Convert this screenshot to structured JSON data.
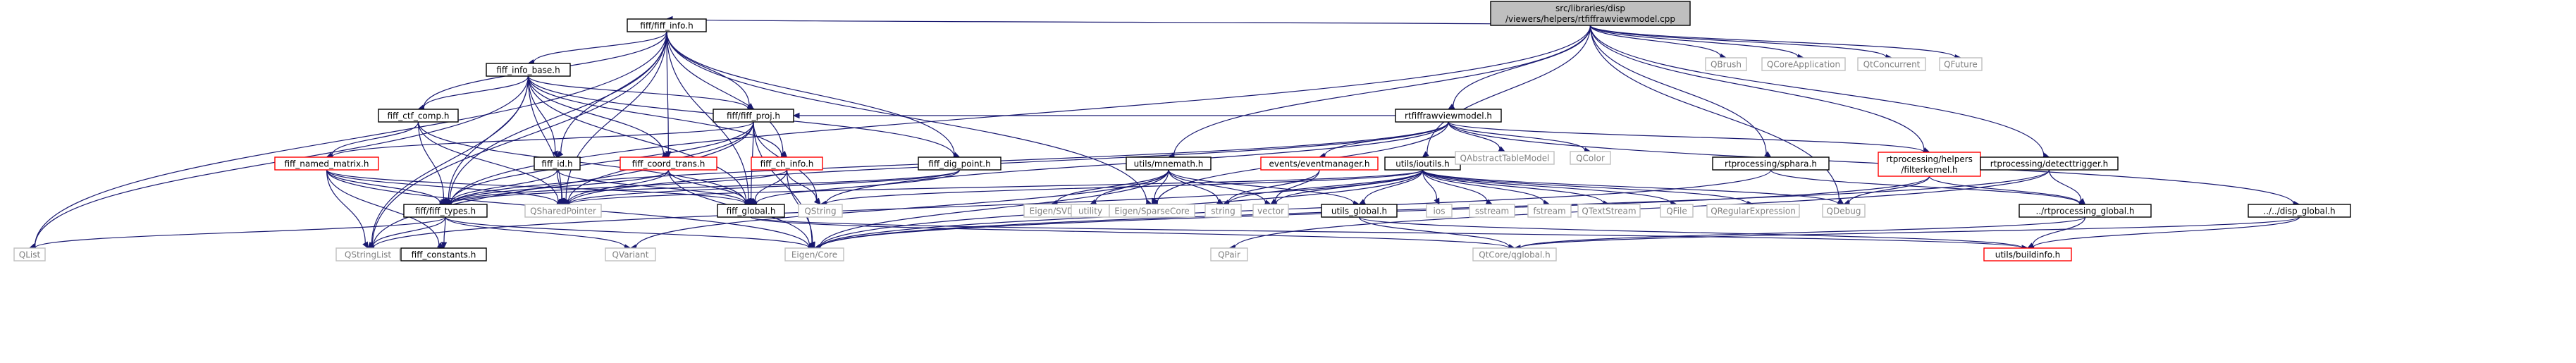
{
  "graph": {
    "root": "src/libraries/disp/viewers/helpers/rtfiffrawviewmodel.cpp",
    "colors": {
      "edge": "#191970",
      "border_normal": "#000000",
      "border_truncated": "#ff0000",
      "border_external": "#bfbfbf",
      "fill_root": "#bfbfbf",
      "fill_normal": "#ffffff",
      "text_normal": "#000000",
      "text_external": "#808080"
    },
    "nodes": [
      {
        "id": "root",
        "lines": [
          "src/libraries/disp",
          "/viewers/helpers/rtfiffrawviewmodel.cpp"
        ],
        "style": "root"
      },
      {
        "id": "fiff_info",
        "lines": [
          "fiff/fiff_info.h"
        ],
        "style": "normal"
      },
      {
        "id": "fiff_info_base",
        "lines": [
          "fiff_info_base.h"
        ],
        "style": "normal"
      },
      {
        "id": "fiff_ctf_comp",
        "lines": [
          "fiff_ctf_comp.h"
        ],
        "style": "normal"
      },
      {
        "id": "fiff_proj",
        "lines": [
          "fiff/fiff_proj.h"
        ],
        "style": "normal"
      },
      {
        "id": "fiff_named_matrix",
        "lines": [
          "fiff_named_matrix.h"
        ],
        "style": "truncated"
      },
      {
        "id": "fiff_id",
        "lines": [
          "fiff_id.h"
        ],
        "style": "normal"
      },
      {
        "id": "fiff_coord_trans",
        "lines": [
          "fiff_coord_trans.h"
        ],
        "style": "truncated"
      },
      {
        "id": "fiff_ch_info",
        "lines": [
          "fiff_ch_info.h"
        ],
        "style": "truncated"
      },
      {
        "id": "fiff_dig_point",
        "lines": [
          "fiff_dig_point.h"
        ],
        "style": "normal"
      },
      {
        "id": "fiff_types",
        "lines": [
          "fiff/fiff_types.h"
        ],
        "style": "normal"
      },
      {
        "id": "fiff_global",
        "lines": [
          "fiff_global.h"
        ],
        "style": "normal"
      },
      {
        "id": "fiff_constants",
        "lines": [
          "fiff_constants.h"
        ],
        "style": "normal"
      },
      {
        "id": "rtfiffrawviewmodel",
        "lines": [
          "rtfiffrawviewmodel.h"
        ],
        "style": "normal"
      },
      {
        "id": "utils_mnemath",
        "lines": [
          "utils/mnemath.h"
        ],
        "style": "normal"
      },
      {
        "id": "events_eventmanager",
        "lines": [
          "events/eventmanager.h"
        ],
        "style": "truncated"
      },
      {
        "id": "utils_ioutils",
        "lines": [
          "utils/ioutils.h"
        ],
        "style": "normal"
      },
      {
        "id": "utils_global",
        "lines": [
          "utils_global.h"
        ],
        "style": "normal"
      },
      {
        "id": "rtprocessing_sphara",
        "lines": [
          "rtprocessing/sphara.h"
        ],
        "style": "normal"
      },
      {
        "id": "rtprocessing_filterkernel",
        "lines": [
          "rtprocessing/helpers",
          "/filterkernel.h"
        ],
        "style": "truncated"
      },
      {
        "id": "rtprocessing_detecttrigger",
        "lines": [
          "rtprocessing/detecttrigger.h"
        ],
        "style": "normal"
      },
      {
        "id": "rtprocessing_global",
        "lines": [
          "../rtprocessing_global.h"
        ],
        "style": "normal"
      },
      {
        "id": "disp_global",
        "lines": [
          "../../disp_global.h"
        ],
        "style": "normal"
      },
      {
        "id": "utils_buildinfo",
        "lines": [
          "utils/buildinfo.h"
        ],
        "style": "truncated"
      },
      {
        "id": "QBrush",
        "lines": [
          "QBrush"
        ],
        "style": "external"
      },
      {
        "id": "QCoreApplication",
        "lines": [
          "QCoreApplication"
        ],
        "style": "external"
      },
      {
        "id": "QtConcurrent",
        "lines": [
          "QtConcurrent"
        ],
        "style": "external"
      },
      {
        "id": "QFuture",
        "lines": [
          "QFuture"
        ],
        "style": "external"
      },
      {
        "id": "QAbstractTableModel",
        "lines": [
          "QAbstractTableModel"
        ],
        "style": "external"
      },
      {
        "id": "QColor",
        "lines": [
          "QColor"
        ],
        "style": "external"
      },
      {
        "id": "QList",
        "lines": [
          "QList"
        ],
        "style": "external"
      },
      {
        "id": "QStringList",
        "lines": [
          "QStringList"
        ],
        "style": "external"
      },
      {
        "id": "QSharedPointer",
        "lines": [
          "QSharedPointer"
        ],
        "style": "external"
      },
      {
        "id": "QString",
        "lines": [
          "QString"
        ],
        "style": "external"
      },
      {
        "id": "QVariant",
        "lines": [
          "QVariant"
        ],
        "style": "external"
      },
      {
        "id": "Eigen_Core",
        "lines": [
          "Eigen/Core"
        ],
        "style": "external"
      },
      {
        "id": "Eigen_SVD",
        "lines": [
          "Eigen/SVD"
        ],
        "style": "external"
      },
      {
        "id": "utility",
        "lines": [
          "utility"
        ],
        "style": "external"
      },
      {
        "id": "Eigen_SparseCore",
        "lines": [
          "Eigen/SparseCore"
        ],
        "style": "external"
      },
      {
        "id": "string",
        "lines": [
          "string"
        ],
        "style": "external"
      },
      {
        "id": "vector",
        "lines": [
          "vector"
        ],
        "style": "external"
      },
      {
        "id": "QPair",
        "lines": [
          "QPair"
        ],
        "style": "external"
      },
      {
        "id": "QtCore_qglobal",
        "lines": [
          "QtCore/qglobal.h"
        ],
        "style": "external"
      },
      {
        "id": "ios",
        "lines": [
          "ios"
        ],
        "style": "external"
      },
      {
        "id": "sstream",
        "lines": [
          "sstream"
        ],
        "style": "external"
      },
      {
        "id": "fstream",
        "lines": [
          "fstream"
        ],
        "style": "external"
      },
      {
        "id": "QTextStream",
        "lines": [
          "QTextStream"
        ],
        "style": "external"
      },
      {
        "id": "QFile",
        "lines": [
          "QFile"
        ],
        "style": "external"
      },
      {
        "id": "QRegularExpression",
        "lines": [
          "QRegularExpression"
        ],
        "style": "external"
      },
      {
        "id": "QDebug",
        "lines": [
          "QDebug"
        ],
        "style": "external"
      }
    ],
    "edges": [
      [
        "root",
        "fiff_info"
      ],
      [
        "root",
        "rtfiffrawviewmodel"
      ],
      [
        "root",
        "utils_mnemath"
      ],
      [
        "root",
        "utils_ioutils"
      ],
      [
        "root",
        "rtprocessing_sphara"
      ],
      [
        "root",
        "rtprocessing_filterkernel"
      ],
      [
        "root",
        "rtprocessing_detecttrigger"
      ],
      [
        "root",
        "QBrush"
      ],
      [
        "root",
        "QCoreApplication"
      ],
      [
        "root",
        "QtConcurrent"
      ],
      [
        "root",
        "QFuture"
      ],
      [
        "root",
        "fiff_types"
      ],
      [
        "root",
        "QDebug"
      ],
      [
        "fiff_info",
        "fiff_info_base"
      ],
      [
        "fiff_info",
        "fiff_ctf_comp"
      ],
      [
        "fiff_info",
        "fiff_proj"
      ],
      [
        "fiff_info",
        "fiff_id"
      ],
      [
        "fiff_info",
        "fiff_coord_trans"
      ],
      [
        "fiff_info",
        "fiff_ch_info"
      ],
      [
        "fiff_info",
        "fiff_dig_point"
      ],
      [
        "fiff_info",
        "fiff_types"
      ],
      [
        "fiff_info",
        "fiff_global"
      ],
      [
        "fiff_info",
        "QList"
      ],
      [
        "fiff_info",
        "QStringList"
      ],
      [
        "fiff_info",
        "QSharedPointer"
      ],
      [
        "fiff_info",
        "Eigen_SparseCore"
      ],
      [
        "fiff_info_base",
        "fiff_ctf_comp"
      ],
      [
        "fiff_info_base",
        "fiff_proj"
      ],
      [
        "fiff_info_base",
        "fiff_id"
      ],
      [
        "fiff_info_base",
        "fiff_coord_trans"
      ],
      [
        "fiff_info_base",
        "fiff_ch_info"
      ],
      [
        "fiff_info_base",
        "fiff_dig_point"
      ],
      [
        "fiff_info_base",
        "fiff_types"
      ],
      [
        "fiff_info_base",
        "fiff_global"
      ],
      [
        "fiff_info_base",
        "QList"
      ],
      [
        "fiff_info_base",
        "QStringList"
      ],
      [
        "fiff_info_base",
        "QSharedPointer"
      ],
      [
        "fiff_ctf_comp",
        "fiff_named_matrix"
      ],
      [
        "fiff_ctf_comp",
        "fiff_types"
      ],
      [
        "fiff_ctf_comp",
        "fiff_global"
      ],
      [
        "fiff_ctf_comp",
        "QSharedPointer"
      ],
      [
        "fiff_proj",
        "fiff_named_matrix"
      ],
      [
        "fiff_proj",
        "fiff_types"
      ],
      [
        "fiff_proj",
        "fiff_global"
      ],
      [
        "fiff_proj",
        "QSharedPointer"
      ],
      [
        "fiff_proj",
        "QStringList"
      ],
      [
        "fiff_proj",
        "Eigen_Core"
      ],
      [
        "fiff_proj",
        "QString"
      ],
      [
        "fiff_named_matrix",
        "fiff_types"
      ],
      [
        "fiff_named_matrix",
        "fiff_global"
      ],
      [
        "fiff_named_matrix",
        "fiff_constants"
      ],
      [
        "fiff_named_matrix",
        "QSharedPointer"
      ],
      [
        "fiff_named_matrix",
        "QStringList"
      ],
      [
        "fiff_named_matrix",
        "Eigen_Core"
      ],
      [
        "fiff_id",
        "fiff_types"
      ],
      [
        "fiff_id",
        "fiff_global"
      ],
      [
        "fiff_id",
        "QSharedPointer"
      ],
      [
        "fiff_coord_trans",
        "fiff_types"
      ],
      [
        "fiff_coord_trans",
        "fiff_global"
      ],
      [
        "fiff_coord_trans",
        "QSharedPointer"
      ],
      [
        "fiff_coord_trans",
        "Eigen_Core"
      ],
      [
        "fiff_ch_info",
        "fiff_types"
      ],
      [
        "fiff_ch_info",
        "fiff_global"
      ],
      [
        "fiff_ch_info",
        "QString"
      ],
      [
        "fiff_ch_info",
        "Eigen_Core"
      ],
      [
        "fiff_dig_point",
        "fiff_types"
      ],
      [
        "fiff_dig_point",
        "fiff_global"
      ],
      [
        "fiff_dig_point",
        "QSharedPointer"
      ],
      [
        "fiff_types",
        "QList"
      ],
      [
        "fiff_types",
        "QStringList"
      ],
      [
        "fiff_types",
        "fiff_constants"
      ],
      [
        "fiff_types",
        "QVariant"
      ],
      [
        "fiff_types",
        "Eigen_Core"
      ],
      [
        "fiff_global",
        "utils_buildinfo"
      ],
      [
        "fiff_global",
        "QtCore_qglobal"
      ],
      [
        "rtfiffrawviewmodel",
        "fiff_proj"
      ],
      [
        "rtfiffrawviewmodel",
        "fiff_types"
      ],
      [
        "rtfiffrawviewmodel",
        "QAbstractTableModel"
      ],
      [
        "rtfiffrawviewmodel",
        "QColor"
      ],
      [
        "rtfiffrawviewmodel",
        "events_eventmanager"
      ],
      [
        "rtfiffrawviewmodel",
        "rtprocessing_filterkernel"
      ],
      [
        "rtfiffrawviewmodel",
        "disp_global"
      ],
      [
        "rtfiffrawviewmodel",
        "Eigen_SparseCore"
      ],
      [
        "rtfiffrawviewmodel",
        "QSharedPointer"
      ],
      [
        "rtfiffrawviewmodel",
        "QString"
      ],
      [
        "utils_mnemath",
        "utils_global"
      ],
      [
        "utils_mnemath",
        "Eigen_Core"
      ],
      [
        "utils_mnemath",
        "Eigen_SVD"
      ],
      [
        "utils_mnemath",
        "utility"
      ],
      [
        "utils_mnemath",
        "Eigen_SparseCore"
      ],
      [
        "utils_mnemath",
        "string"
      ],
      [
        "utils_mnemath",
        "vector"
      ],
      [
        "utils_mnemath",
        "QVariant"
      ],
      [
        "events_eventmanager",
        "string"
      ],
      [
        "events_eventmanager",
        "vector"
      ],
      [
        "utils_ioutils",
        "utils_global"
      ],
      [
        "utils_ioutils",
        "Eigen_Core"
      ],
      [
        "utils_ioutils",
        "ios"
      ],
      [
        "utils_ioutils",
        "sstream"
      ],
      [
        "utils_ioutils",
        "fstream"
      ],
      [
        "utils_ioutils",
        "QTextStream"
      ],
      [
        "utils_ioutils",
        "QFile"
      ],
      [
        "utils_ioutils",
        "QRegularExpression"
      ],
      [
        "utils_ioutils",
        "QDebug"
      ],
      [
        "utils_ioutils",
        "string"
      ],
      [
        "utils_ioutils",
        "vector"
      ],
      [
        "utils_ioutils",
        "QString"
      ],
      [
        "utils_ioutils",
        "QStringList"
      ],
      [
        "utils_ioutils",
        "QSharedPointer"
      ],
      [
        "utils_global",
        "utils_buildinfo"
      ],
      [
        "utils_global",
        "QtCore_qglobal"
      ],
      [
        "rtprocessing_sphara",
        "rtprocessing_global"
      ],
      [
        "rtprocessing_sphara",
        "Eigen_Core"
      ],
      [
        "rtprocessing_filterkernel",
        "rtprocessing_global"
      ],
      [
        "rtprocessing_filterkernel",
        "Eigen_Core"
      ],
      [
        "rtprocessing_filterkernel",
        "QDebug"
      ],
      [
        "rtprocessing_detecttrigger",
        "rtprocessing_global"
      ],
      [
        "rtprocessing_detecttrigger",
        "Eigen_Core"
      ],
      [
        "rtprocessing_detecttrigger",
        "QPair"
      ],
      [
        "rtprocessing_global",
        "utils_buildinfo"
      ],
      [
        "rtprocessing_global",
        "QtCore_qglobal"
      ],
      [
        "disp_global",
        "utils_buildinfo"
      ],
      [
        "disp_global",
        "QtCore_qglobal"
      ]
    ]
  }
}
